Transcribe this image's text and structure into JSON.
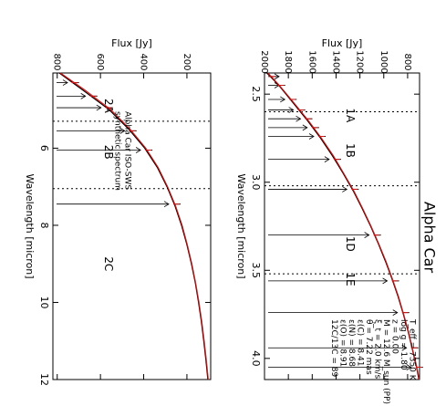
{
  "chart_data": [
    {
      "type": "line",
      "panel": "right",
      "title": "Alpha Car",
      "xlabel": "Wavelength [micron]",
      "ylabel": "Flux [Jy]",
      "xlim": [
        2.38,
        4.12
      ],
      "ylim": [
        700,
        2000
      ],
      "x_ticks": [
        2.5,
        3.0,
        3.5,
        4.0
      ],
      "y_ticks": [
        800,
        1000,
        1200,
        1400,
        1600,
        1800,
        2000
      ],
      "band_boundaries": [
        2.6,
        3.02,
        3.52
      ],
      "band_labels": [
        {
          "label": "1A",
          "x": 2.62
        },
        {
          "label": "1B",
          "x": 2.82
        },
        {
          "label": "1D",
          "x": 3.35
        },
        {
          "label": "1E",
          "x": 3.55
        }
      ],
      "parameters": [
        "T_eff = 7350 K",
        "log g = 1.80",
        "z = 0.00",
        "M = 12.6 M_sun (PP)",
        "ξ_t = 2.0 km/s",
        "θ = 7.22 mas",
        "ε(C) = 8.41",
        "ε(N) = 8.68",
        "ε(O) = 8.91",
        "12C/13C = 89"
      ],
      "series": [
        {
          "name": "",
          "color": "#000000",
          "x": [
            2.38,
            2.45,
            2.55,
            2.65,
            2.75,
            2.85,
            2.95,
            3.05,
            3.15,
            3.25,
            3.35,
            3.45,
            3.55,
            3.65,
            3.75,
            3.85,
            3.95,
            4.05,
            4.12
          ],
          "y": [
            1980,
            1880,
            1760,
            1640,
            1530,
            1430,
            1340,
            1255,
            1180,
            1110,
            1045,
            985,
            930,
            880,
            835,
            795,
            760,
            725,
            705
          ]
        },
        {
          "name": "",
          "color": "#d81818",
          "x": [
            2.38,
            2.45,
            2.55,
            2.65,
            2.75,
            2.85,
            2.95,
            3.05,
            3.15,
            3.25,
            3.35,
            3.45,
            3.55,
            3.65,
            3.75,
            3.85,
            3.95,
            4.05,
            4.12
          ],
          "y": [
            1970,
            1875,
            1752,
            1632,
            1522,
            1422,
            1335,
            1250,
            1176,
            1106,
            1041,
            981,
            926,
            876,
            832,
            792,
            757,
            722,
            702
          ]
        }
      ],
      "absorption_lines": [
        2.4,
        2.45,
        2.53,
        2.59,
        2.64,
        2.69,
        2.74,
        2.87,
        3.04,
        3.3,
        3.56,
        3.74,
        3.94,
        4.05
      ]
    },
    {
      "type": "line",
      "panel": "left",
      "xlabel": "Wavelength [micron]",
      "ylabel": "Flux [Jy]",
      "xlim": [
        4.05,
        12.0
      ],
      "ylim": [
        90,
        820
      ],
      "x_ticks": [
        6,
        8,
        10,
        12
      ],
      "y_ticks": [
        200,
        400,
        600,
        800
      ],
      "band_boundaries": [
        5.3,
        7.05
      ],
      "band_labels": [
        {
          "label": "2A",
          "x": 4.9
        },
        {
          "label": "2B",
          "x": 6.1
        },
        {
          "label": "2C",
          "x": 9.0
        }
      ],
      "legend": [
        {
          "label": "Alpha Car ISO-SWS",
          "color": "#000000"
        },
        {
          "label": "synthetic spectrum",
          "color": "#d81818"
        }
      ],
      "series": [
        {
          "name": "Alpha Car ISO-SWS",
          "color": "#000000",
          "x": [
            4.05,
            4.5,
            5.0,
            5.5,
            6.0,
            6.5,
            7.0,
            7.5,
            8.0,
            8.5,
            9.0,
            9.5,
            10.0,
            10.5,
            11.0,
            11.5,
            12.0
          ],
          "y": [
            790,
            680,
            560,
            470,
            395,
            337,
            292,
            255,
            225,
            200,
            179,
            161,
            146,
            133,
            122,
            112,
            103
          ]
        },
        {
          "name": "synthetic spectrum",
          "color": "#d81818",
          "x": [
            4.05,
            4.5,
            5.0,
            5.5,
            6.0,
            6.5,
            7.0,
            7.5,
            8.0,
            8.5,
            9.0,
            9.5,
            10.0,
            10.5,
            11.0,
            11.5,
            12.0
          ],
          "y": [
            785,
            670,
            552,
            464,
            390,
            333,
            289,
            252,
            222,
            198,
            177,
            159,
            144,
            131,
            120,
            110,
            101
          ]
        }
      ],
      "absorption_lines": [
        4.3,
        4.65,
        4.95,
        5.55,
        6.05,
        7.45
      ]
    }
  ]
}
